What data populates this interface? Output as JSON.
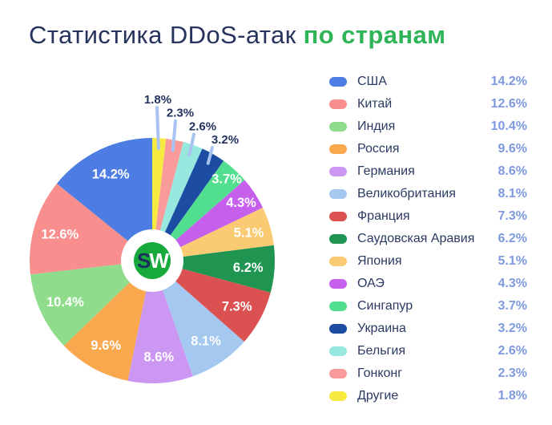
{
  "title": {
    "main": "Статистика DDoS-атак",
    "accent": "по странам"
  },
  "logo": {
    "circle_color": "#17A93B",
    "letters": [
      {
        "char": "S",
        "color": "#1B2E5B"
      },
      {
        "char": "W",
        "color": "#FFFFFF"
      }
    ]
  },
  "chart_data": {
    "type": "pie",
    "title": "Статистика DDoS-атак по странам",
    "unit": "%",
    "donut": true,
    "start_angle_deg": 0,
    "direction": "clockwise",
    "pie_order": "ascending values clockwise from 12 o'clock",
    "legend_position": "right",
    "center_logo_text": "SW",
    "items": [
      {
        "label": "США",
        "value": 14.2,
        "color": "#4D7DE2"
      },
      {
        "label": "Китай",
        "value": 12.6,
        "color": "#F88E8E"
      },
      {
        "label": "Индия",
        "value": 10.4,
        "color": "#8FDD8C"
      },
      {
        "label": "Россия",
        "value": 9.6,
        "color": "#F9A84E"
      },
      {
        "label": "Германия",
        "value": 8.6,
        "color": "#CC97F3"
      },
      {
        "label": "Великобритания",
        "value": 8.1,
        "color": "#A5C8F1"
      },
      {
        "label": "Франция",
        "value": 7.3,
        "color": "#DB5151"
      },
      {
        "label": "Саудовская Аравия",
        "value": 6.2,
        "color": "#1F9551"
      },
      {
        "label": "Япония",
        "value": 5.1,
        "color": "#FACB73"
      },
      {
        "label": "ОАЭ",
        "value": 4.3,
        "color": "#C75FED"
      },
      {
        "label": "Сингапур",
        "value": 3.7,
        "color": "#52DE8F"
      },
      {
        "label": "Украина",
        "value": 3.2,
        "color": "#1D4DA3"
      },
      {
        "label": "Бельгия",
        "value": 2.6,
        "color": "#97E9E0"
      },
      {
        "label": "Гонконг",
        "value": 2.3,
        "color": "#FA9B9B"
      },
      {
        "label": "Другие",
        "value": 1.8,
        "color": "#F6E93F"
      }
    ]
  },
  "colors": {
    "background": "#FFFFFF",
    "title_main": "#26335C",
    "title_accent": "#2FB457",
    "legend_label": "#2B3A63",
    "legend_value": "#7E99DE",
    "inside_label": "#FFFFFF",
    "outside_label": "#24325F",
    "leader_line": "#A9C3F2"
  }
}
